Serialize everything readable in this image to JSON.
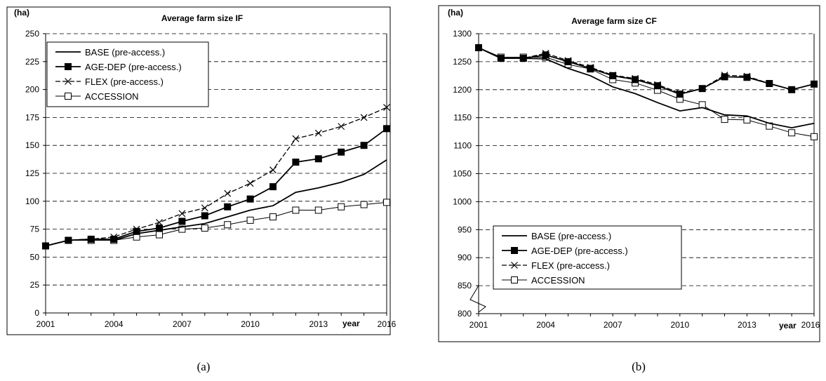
{
  "captions": [
    "(a)",
    "(b)"
  ],
  "chart_data": [
    {
      "type": "line",
      "title": "Average farm size IF",
      "ylabel": "(ha)",
      "xlabel": "year",
      "xlim": [
        2001,
        2016
      ],
      "ylim": [
        0,
        250
      ],
      "x_ticks": [
        2001,
        2004,
        2007,
        2010,
        2013,
        2016
      ],
      "y_ticks": [
        0,
        25,
        50,
        75,
        100,
        125,
        150,
        175,
        200,
        225,
        250
      ],
      "grid": "horizontal dashed",
      "legend_position": "top-left",
      "x": [
        2001,
        2002,
        2003,
        2004,
        2005,
        2006,
        2007,
        2008,
        2009,
        2010,
        2011,
        2012,
        2013,
        2014,
        2015,
        2016
      ],
      "series": [
        {
          "name": "BASE (pre-access.)",
          "marker": "none",
          "values": [
            60,
            65,
            66,
            65,
            71,
            74,
            77,
            80,
            86,
            92,
            96,
            108,
            112,
            117,
            124,
            137
          ]
        },
        {
          "name": "AGE-DEP (pre-access.)",
          "marker": "filled-square",
          "values": [
            60,
            65,
            66,
            66,
            73,
            76,
            82,
            87,
            95,
            102,
            113,
            135,
            138,
            144,
            150,
            165
          ]
        },
        {
          "name": "FLEX (pre-access.)",
          "marker": "x",
          "values": [
            60,
            65,
            66,
            68,
            75,
            81,
            89,
            94,
            107,
            116,
            128,
            156,
            161,
            167,
            175,
            184
          ]
        },
        {
          "name": "ACCESSION",
          "marker": "open-square",
          "values": [
            60,
            65,
            65,
            65,
            68,
            70,
            75,
            76,
            79,
            83,
            86,
            92,
            92,
            95,
            97,
            99
          ]
        }
      ]
    },
    {
      "type": "line",
      "title": "Average farm size CF",
      "ylabel": "(ha)",
      "xlabel": "year",
      "xlim": [
        2001,
        2016
      ],
      "ylim": [
        800,
        1300
      ],
      "x_ticks": [
        2001,
        2004,
        2007,
        2010,
        2013,
        2016
      ],
      "y_ticks": [
        800,
        850,
        900,
        950,
        1000,
        1050,
        1100,
        1150,
        1200,
        1250,
        1300
      ],
      "grid": "horizontal dashed",
      "legend_position": "bottom-left",
      "axis_break": true,
      "x": [
        2001,
        2002,
        2003,
        2004,
        2005,
        2006,
        2007,
        2008,
        2009,
        2010,
        2011,
        2012,
        2013,
        2014,
        2015,
        2016
      ],
      "series": [
        {
          "name": "BASE (pre-access.)",
          "marker": "none",
          "values": [
            1275,
            1256,
            1256,
            1255,
            1238,
            1225,
            1205,
            1193,
            1177,
            1162,
            1168,
            1155,
            1153,
            1140,
            1132,
            1140
          ]
        },
        {
          "name": "AGE-DEP (pre-access.)",
          "marker": "filled-square",
          "values": [
            1275,
            1256,
            1256,
            1262,
            1250,
            1238,
            1225,
            1218,
            1207,
            1192,
            1202,
            1223,
            1222,
            1211,
            1200,
            1210
          ]
        },
        {
          "name": "FLEX (pre-access.)",
          "marker": "x",
          "values": [
            1275,
            1256,
            1256,
            1265,
            1252,
            1240,
            1226,
            1220,
            1209,
            1194,
            1202,
            1226,
            1224,
            1211,
            1200,
            1210
          ]
        },
        {
          "name": "ACCESSION",
          "marker": "open-square",
          "values": [
            1275,
            1258,
            1258,
            1258,
            1245,
            1237,
            1218,
            1212,
            1199,
            1183,
            1173,
            1147,
            1146,
            1135,
            1123,
            1116
          ]
        }
      ]
    }
  ]
}
